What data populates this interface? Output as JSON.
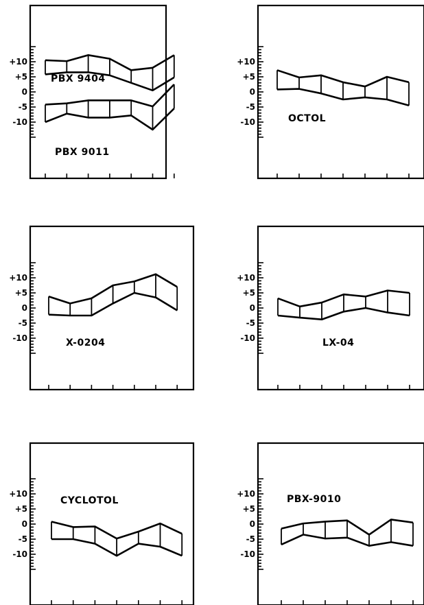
{
  "chart_data": [
    {
      "type": "area",
      "ylim": [
        -15,
        15
      ],
      "yticklabels": [
        "+10",
        "+5",
        "0",
        "-5",
        "-10"
      ],
      "x": [
        1,
        2,
        3,
        4,
        5,
        6,
        7
      ],
      "series": [
        {
          "name": "PBX 9404",
          "upper": [
            10.5,
            10.2,
            12.2,
            11,
            7.2,
            8,
            12.2
          ],
          "lower": [
            5.8,
            6.5,
            6.5,
            5.5,
            3,
            0.5,
            4.8
          ]
        },
        {
          "name": "PBX 9011",
          "upper": [
            -4.2,
            -3.8,
            -2.8,
            -2.8,
            -2.8,
            -4.8,
            2.5
          ],
          "lower": [
            -10,
            -7.2,
            -8.5,
            -8.5,
            -7.8,
            -12.5,
            -5.5
          ]
        }
      ]
    },
    {
      "type": "area",
      "ylim": [
        -15,
        15
      ],
      "yticklabels": [
        "+10",
        "+5",
        "0",
        "-5",
        "-10"
      ],
      "x": [
        1,
        2,
        3,
        4,
        5,
        6,
        7
      ],
      "series": [
        {
          "name": "OCTOL",
          "upper": [
            7.2,
            4.8,
            5.5,
            3.2,
            1.8,
            5,
            3.2
          ],
          "lower": [
            0.8,
            1,
            -0.5,
            -2.5,
            -1.8,
            -2.5,
            -4.5
          ]
        }
      ]
    },
    {
      "type": "area",
      "ylim": [
        -15,
        15
      ],
      "yticklabels": [
        "+10",
        "+5",
        "0",
        "-5",
        "-10"
      ],
      "x": [
        1,
        2,
        3,
        4,
        5,
        6,
        7
      ],
      "series": [
        {
          "name": "X-0204",
          "upper": [
            3.8,
            1.5,
            3.2,
            7.5,
            8.8,
            11.2,
            7
          ],
          "lower": [
            -2.2,
            -2.5,
            -2.5,
            1.5,
            5,
            3.5,
            -0.8
          ]
        }
      ]
    },
    {
      "type": "area",
      "ylim": [
        -15,
        15
      ],
      "yticklabels": [
        "+10",
        "+5",
        "0",
        "-5",
        "-10"
      ],
      "x": [
        1,
        2,
        3,
        4,
        5,
        6,
        7
      ],
      "series": [
        {
          "name": "LX-04",
          "upper": [
            3.2,
            0.5,
            1.8,
            4.5,
            3.8,
            5.8,
            5
          ],
          "lower": [
            -2.5,
            -3.2,
            -3.8,
            -1.2,
            0,
            -1.5,
            -2.5
          ]
        }
      ]
    },
    {
      "type": "area",
      "ylim": [
        -15,
        15
      ],
      "yticklabels": [
        "+10",
        "+5",
        "0",
        "-5",
        "-10"
      ],
      "x": [
        1,
        2,
        3,
        4,
        5,
        6,
        7
      ],
      "series": [
        {
          "name": "CYCLOTOL",
          "upper": [
            0.8,
            -1,
            -0.8,
            -4.8,
            -2.5,
            0.2,
            -3.2
          ],
          "lower": [
            -5,
            -5,
            -6.5,
            -10.5,
            -6.5,
            -7.5,
            -10.5
          ]
        }
      ]
    },
    {
      "type": "area",
      "ylim": [
        -15,
        15
      ],
      "yticklabels": [
        "+10",
        "+5",
        "0",
        "-5",
        "-10"
      ],
      "x": [
        1,
        2,
        3,
        4,
        5,
        6,
        7
      ],
      "series": [
        {
          "name": "PBX-9010",
          "upper": [
            -1.5,
            0.2,
            0.8,
            1.2,
            -3.5,
            1.5,
            0.5
          ],
          "lower": [
            -6.8,
            -3.5,
            -4.8,
            -4.5,
            -7.2,
            -6,
            -7.2
          ]
        }
      ]
    }
  ]
}
